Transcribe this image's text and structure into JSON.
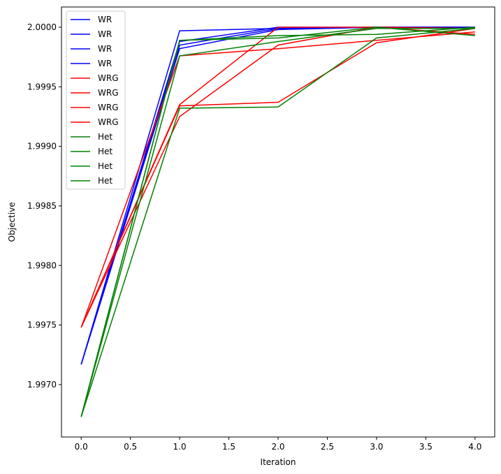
{
  "chart_data": {
    "type": "line",
    "title": "",
    "xlabel": "Iteration",
    "ylabel": "Objective",
    "xlim": [
      -0.2,
      4.2
    ],
    "ylim": [
      1.99656,
      2.00017
    ],
    "xticks": [
      0.0,
      0.5,
      1.0,
      1.5,
      2.0,
      2.5,
      3.0,
      3.5,
      4.0
    ],
    "xtick_labels": [
      "0.0",
      "0.5",
      "1.0",
      "1.5",
      "2.0",
      "2.5",
      "3.0",
      "3.5",
      "4.0"
    ],
    "yticks": [
      1.997,
      1.9975,
      1.998,
      1.9985,
      1.999,
      1.9995,
      2.0
    ],
    "ytick_labels": [
      "1.9970",
      "1.9975",
      "1.9980",
      "1.9985",
      "1.9990",
      "1.9995",
      "2.0000"
    ],
    "grid": false,
    "legend_placement": "top-left",
    "x": [
      0,
      1,
      2,
      3,
      4
    ],
    "series": [
      {
        "name": "WR",
        "color": "#0000ff",
        "values": [
          1.99717,
          1.99997,
          1.99999,
          2.0,
          2.0
        ]
      },
      {
        "name": "WR",
        "color": "#0000ff",
        "values": [
          1.99717,
          1.99988,
          2.0,
          2.0,
          2.0
        ]
      },
      {
        "name": "WR",
        "color": "#0000ff",
        "values": [
          1.99717,
          1.99985,
          1.99999,
          2.0,
          2.0
        ]
      },
      {
        "name": "WR",
        "color": "#0000ff",
        "values": [
          1.99717,
          1.99982,
          1.99998,
          2.0,
          2.0
        ]
      },
      {
        "name": "WRG",
        "color": "#ff0000",
        "values": [
          1.99748,
          1.99976,
          1.99982,
          1.99989,
          1.99996
        ]
      },
      {
        "name": "WRG",
        "color": "#ff0000",
        "values": [
          1.99748,
          1.99935,
          2.0,
          2.0,
          1.99999
        ]
      },
      {
        "name": "WRG",
        "color": "#ff0000",
        "values": [
          1.99748,
          1.99934,
          1.99937,
          1.99987,
          1.99999
        ]
      },
      {
        "name": "WRG",
        "color": "#ff0000",
        "values": [
          1.99748,
          1.99925,
          1.99985,
          2.0,
          1.99994
        ]
      },
      {
        "name": "Het",
        "color": "#008000",
        "values": [
          1.99673,
          1.99989,
          1.99993,
          1.99994,
          2.0
        ]
      },
      {
        "name": "Het",
        "color": "#008000",
        "values": [
          1.99673,
          1.99989,
          1.99991,
          2.0,
          1.99993
        ]
      },
      {
        "name": "Het",
        "color": "#008000",
        "values": [
          1.99673,
          1.99976,
          1.99988,
          1.99999,
          1.99999
        ]
      },
      {
        "name": "Het",
        "color": "#008000",
        "values": [
          1.99673,
          1.99932,
          1.99933,
          1.99991,
          1.99999
        ]
      }
    ]
  }
}
